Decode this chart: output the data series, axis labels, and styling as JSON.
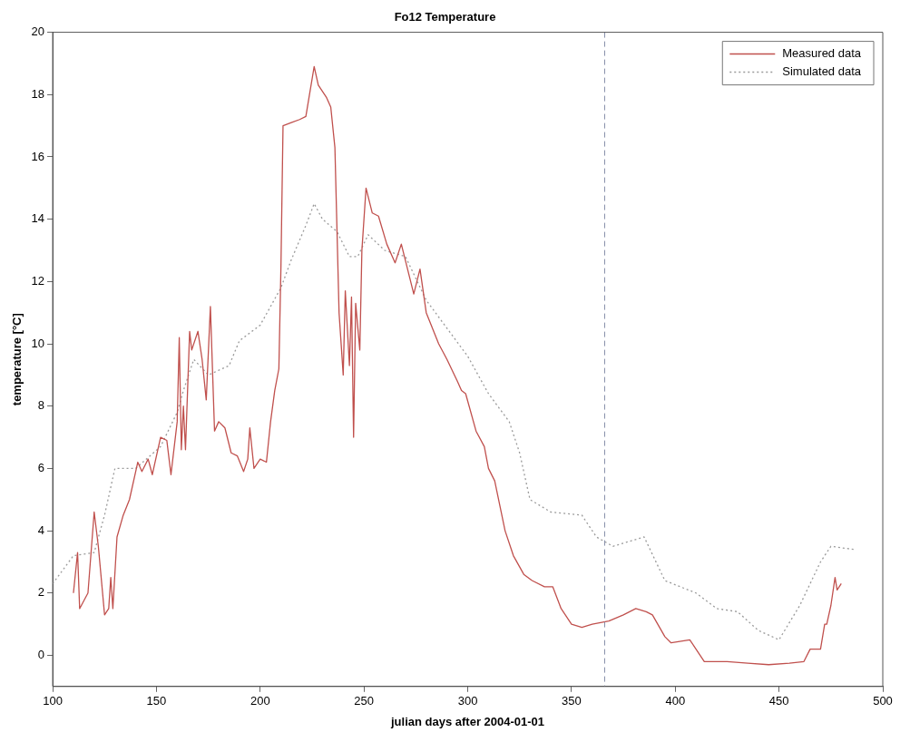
{
  "chart_data": {
    "type": "line",
    "title": "Fo12 Temperature",
    "xlabel": "julian days after 2004-01-01",
    "ylabel": "temperature [°C]",
    "xlim": [
      100,
      500
    ],
    "xticks": [
      100,
      150,
      200,
      250,
      300,
      350,
      400,
      450,
      500
    ],
    "ylim": [
      -1,
      20
    ],
    "yticks": [
      0,
      2,
      4,
      6,
      8,
      10,
      12,
      14,
      16,
      18,
      20
    ],
    "grid": false,
    "legend": "top right",
    "ref_lines": [
      {
        "axis": "x",
        "value": 366,
        "color": "#8890aa",
        "line_style": "dashed"
      }
    ],
    "series": [
      {
        "name": "Measured data",
        "color": "#c0504d",
        "line_style": "solid",
        "x": [
          110,
          112,
          113,
          117,
          120,
          122,
          125,
          127,
          128,
          129,
          131,
          134,
          137,
          141,
          143,
          146,
          148,
          152,
          155,
          157,
          160,
          161,
          162,
          163,
          164,
          166,
          167,
          170,
          172,
          174,
          176,
          178,
          180,
          183,
          186,
          189,
          192,
          194,
          195,
          197,
          200,
          203,
          205,
          207,
          209,
          210,
          211,
          215,
          219,
          222,
          226,
          228,
          232,
          234,
          236,
          238,
          240,
          241,
          243,
          244,
          245,
          246,
          248,
          249,
          251,
          254,
          257,
          261,
          265,
          268,
          274,
          277,
          280,
          286,
          290,
          295,
          297,
          299,
          304,
          308,
          310,
          313,
          318,
          322,
          327,
          331,
          337,
          341,
          345,
          350,
          355,
          360,
          368,
          375,
          381,
          386,
          389,
          395,
          398,
          407,
          410,
          414,
          425,
          435,
          445,
          455,
          462,
          465,
          470,
          472,
          473,
          475,
          477,
          478,
          480
        ],
        "values": [
          2.0,
          3.3,
          1.5,
          2.0,
          4.6,
          3.5,
          1.3,
          1.5,
          2.5,
          1.5,
          3.8,
          4.5,
          5.0,
          6.2,
          5.9,
          6.3,
          5.8,
          7.0,
          6.9,
          5.8,
          7.5,
          10.2,
          6.6,
          8.0,
          6.6,
          10.4,
          9.8,
          10.4,
          9.5,
          8.2,
          11.2,
          7.2,
          7.5,
          7.3,
          6.5,
          6.4,
          5.9,
          6.3,
          7.3,
          6.0,
          6.3,
          6.2,
          7.5,
          8.5,
          9.2,
          12.5,
          17.0,
          17.1,
          17.2,
          17.3,
          18.9,
          18.3,
          17.9,
          17.6,
          16.3,
          11.0,
          9.0,
          11.7,
          9.3,
          11.5,
          7.0,
          11.3,
          9.8,
          13.0,
          15.0,
          14.2,
          14.1,
          13.2,
          12.6,
          13.2,
          11.6,
          12.4,
          11.0,
          10.0,
          9.5,
          8.8,
          8.5,
          8.4,
          7.2,
          6.7,
          6.0,
          5.6,
          4.0,
          3.2,
          2.6,
          2.4,
          2.2,
          2.2,
          1.5,
          1.0,
          0.9,
          1.0,
          1.1,
          1.3,
          1.5,
          1.4,
          1.3,
          0.6,
          0.4,
          0.5,
          0.2,
          -0.2,
          -0.2,
          -0.25,
          -0.3,
          -0.25,
          -0.2,
          0.2,
          0.2,
          1.0,
          1.0,
          1.6,
          2.5,
          2.1,
          2.3
        ]
      },
      {
        "name": "Simulated data",
        "color": "#9a9a9a",
        "line_style": "dotted",
        "x": [
          100,
          110,
          120,
          125,
          130,
          140,
          152,
          160,
          163,
          168,
          175,
          185,
          190,
          200,
          210,
          215,
          222,
          226,
          230,
          237,
          243,
          247,
          252,
          260,
          270,
          280,
          290,
          300,
          310,
          320,
          325,
          330,
          340,
          355,
          362,
          370,
          380,
          385,
          395,
          410,
          420,
          430,
          440,
          450,
          460,
          470,
          475,
          486
        ],
        "values": [
          2.3,
          3.2,
          3.3,
          4.5,
          6.0,
          6.0,
          6.7,
          7.8,
          8.5,
          9.5,
          9.0,
          9.3,
          10.1,
          10.6,
          11.8,
          12.7,
          13.8,
          14.5,
          14.0,
          13.6,
          12.8,
          12.8,
          13.5,
          13.0,
          12.8,
          11.4,
          10.5,
          9.6,
          8.4,
          7.5,
          6.5,
          5.0,
          4.6,
          4.5,
          3.8,
          3.5,
          3.7,
          3.8,
          2.4,
          2.0,
          1.5,
          1.4,
          0.8,
          0.5,
          1.6,
          3.0,
          3.5,
          3.4
        ]
      }
    ]
  }
}
